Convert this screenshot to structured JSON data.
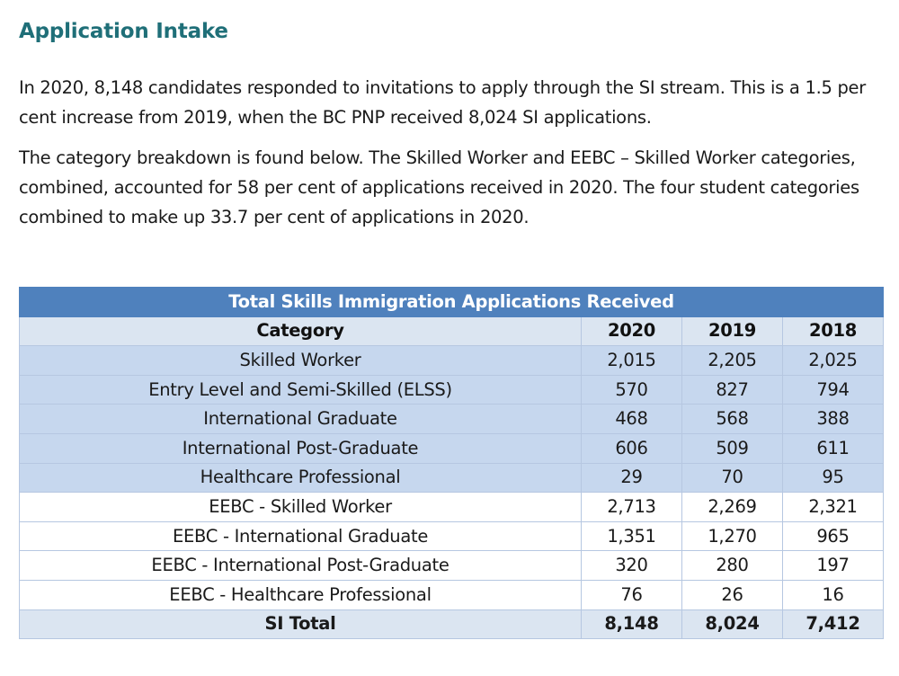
{
  "heading": "Application Intake",
  "paragraphs": [
    "In 2020, 8,148 candidates responded to invitations to apply through the SI stream. This is a 1.5 per cent increase from 2019, when the BC PNP received 8,024 SI applications.",
    "The category breakdown is found below. The Skilled Worker and EEBC – Skilled Worker categories, combined, accounted for 58 per cent of applications received in 2020. The four student categories combined to make up 33.7 per cent of applications in 2020."
  ],
  "table": {
    "title": "Total Skills Immigration Applications Received",
    "headers": [
      "Category",
      "2020",
      "2019",
      "2018"
    ],
    "rows": [
      {
        "category": "Skilled Worker",
        "y2020": "2,015",
        "y2019": "2,205",
        "y2018": "2,025"
      },
      {
        "category": "Entry Level and Semi-Skilled (ELSS)",
        "y2020": "570",
        "y2019": "827",
        "y2018": "794"
      },
      {
        "category": "International Graduate",
        "y2020": "468",
        "y2019": "568",
        "y2018": "388"
      },
      {
        "category": "International Post-Graduate",
        "y2020": "606",
        "y2019": "509",
        "y2018": "611"
      },
      {
        "category": "Healthcare Professional",
        "y2020": "29",
        "y2019": "70",
        "y2018": "95"
      },
      {
        "category": "EEBC - Skilled Worker",
        "y2020": "2,713",
        "y2019": "2,269",
        "y2018": "2,321"
      },
      {
        "category": "EEBC - International Graduate",
        "y2020": "1,351",
        "y2019": "1,270",
        "y2018": "965"
      },
      {
        "category": "EEBC - International Post-Graduate",
        "y2020": "320",
        "y2019": "280",
        "y2018": "197"
      },
      {
        "category": "EEBC - Healthcare Professional",
        "y2020": "76",
        "y2019": "26",
        "y2018": "16"
      }
    ],
    "total": {
      "category": "SI Total",
      "y2020": "8,148",
      "y2019": "8,024",
      "y2018": "7,412"
    }
  },
  "colors": {
    "heading": "#1f6f78",
    "table_title_bg": "#4f81bd",
    "shaded_row_bg": "#c6d7ee",
    "header_row_bg": "#dbe5f1"
  }
}
